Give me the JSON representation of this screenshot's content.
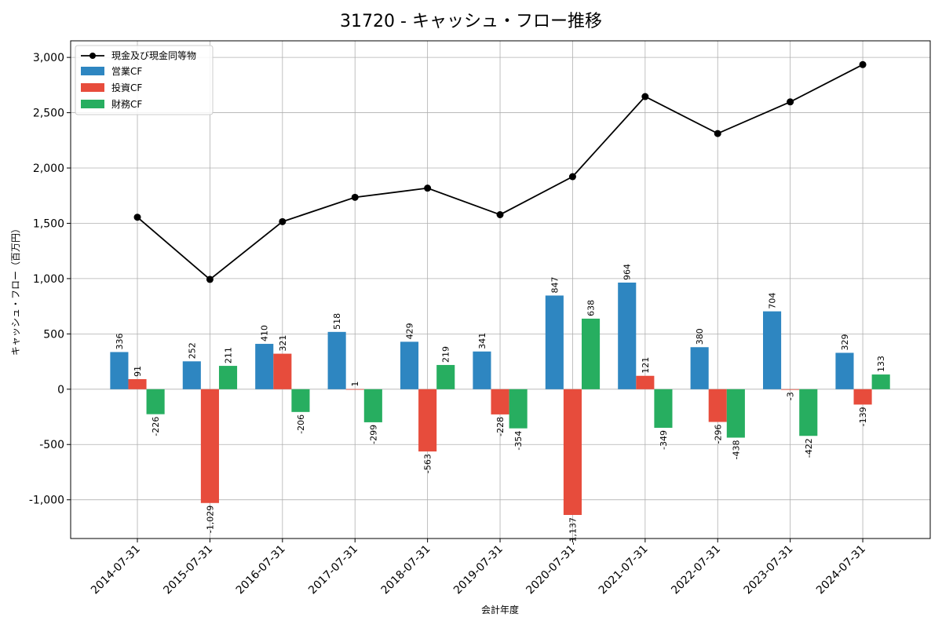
{
  "chart_data": {
    "type": "bar",
    "title": "31720 - キャッシュ・フロー推移",
    "xlabel": "会計年度",
    "ylabel": "キャッシュ・フロー（百万円）",
    "categories": [
      "2014-07-31",
      "2015-07-31",
      "2016-07-31",
      "2017-07-31",
      "2018-07-31",
      "2019-07-31",
      "2020-07-31",
      "2021-07-31",
      "2022-07-31",
      "2023-07-31",
      "2024-07-31"
    ],
    "yticks": [
      -1000,
      -500,
      0,
      500,
      1000,
      1500,
      2000,
      2500,
      3000
    ],
    "ytick_labels": [
      "-1,000",
      "-500",
      "0",
      "500",
      "1,000",
      "1,500",
      "2,000",
      "2,500",
      "3,000"
    ],
    "ylim": [
      -1350,
      3150
    ],
    "grid": true,
    "legend_position": "top-left",
    "series": [
      {
        "name": "営業CF",
        "kind": "bar",
        "color": "#2e86c1",
        "values": [
          336,
          252,
          410,
          518,
          429,
          341,
          847,
          964,
          380,
          704,
          329
        ],
        "labels": [
          "336",
          "252",
          "410",
          "518",
          "429",
          "341",
          "847",
          "964",
          "380",
          "704",
          "329"
        ]
      },
      {
        "name": "投資CF",
        "kind": "bar",
        "color": "#e74c3c",
        "values": [
          91,
          -1029,
          321,
          1,
          -563,
          -228,
          -1137,
          121,
          -296,
          -3,
          -139
        ],
        "labels": [
          "91",
          "-1,029",
          "321",
          "1",
          "-563",
          "-228",
          "-1,137",
          "121",
          "-296",
          "-3",
          "-139"
        ]
      },
      {
        "name": "財務CF",
        "kind": "bar",
        "color": "#27ae60",
        "values": [
          -226,
          211,
          -206,
          -299,
          219,
          -354,
          638,
          -349,
          -438,
          -422,
          133
        ],
        "labels": [
          "-226",
          "211",
          "-206",
          "-299",
          "219",
          "-354",
          "638",
          "-349",
          "-438",
          "-422",
          "133"
        ]
      }
    ],
    "line_series": {
      "name": "現金及び現金同等物",
      "color": "#000000",
      "values": [
        1555,
        993,
        1515,
        1735,
        1818,
        1578,
        1922,
        2646,
        2312,
        2598,
        2935
      ]
    }
  }
}
